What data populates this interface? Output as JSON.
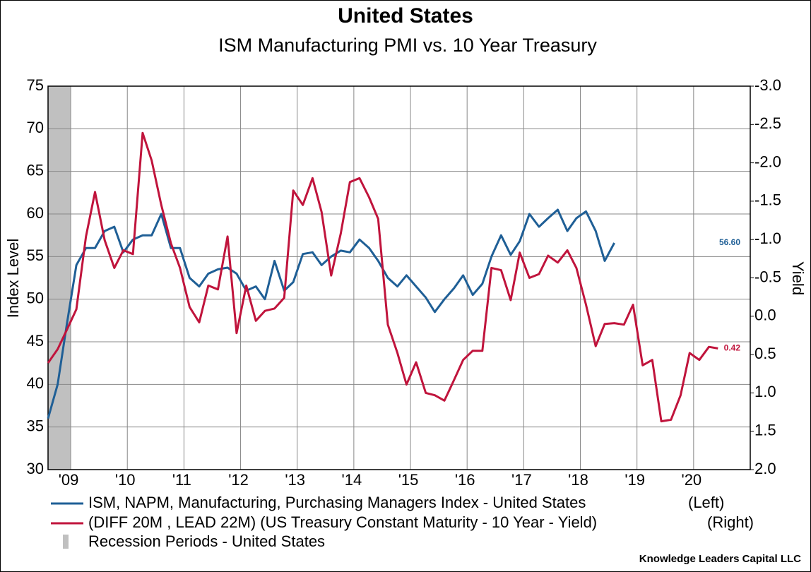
{
  "chart_data": {
    "type": "line",
    "title": "United States",
    "subtitle": "ISM Manufacturing PMI vs. 10 Year Treasury",
    "y_label": "Index Level",
    "y2_label": "Yield",
    "source": "Knowledge Leaders Capital LLC",
    "x": [
      2008.6,
      2008.77,
      2008.93,
      2009.1,
      2009.27,
      2009.43,
      2009.6,
      2009.77,
      2009.93,
      2010.1,
      2010.27,
      2010.43,
      2010.6,
      2010.77,
      2010.93,
      2011.1,
      2011.27,
      2011.43,
      2011.6,
      2011.77,
      2011.93,
      2012.1,
      2012.27,
      2012.43,
      2012.6,
      2012.77,
      2012.93,
      2013.1,
      2013.27,
      2013.43,
      2013.6,
      2013.77,
      2013.93,
      2014.1,
      2014.27,
      2014.43,
      2014.6,
      2014.77,
      2014.93,
      2015.1,
      2015.27,
      2015.43,
      2015.6,
      2015.77,
      2015.93,
      2016.1,
      2016.27,
      2016.43,
      2016.6,
      2016.77,
      2016.93,
      2017.1,
      2017.27,
      2017.43,
      2017.6,
      2017.77,
      2017.93,
      2018.1,
      2018.27,
      2018.43,
      2018.6,
      2018.77,
      2018.93,
      2019.1,
      2019.27,
      2019.43,
      2019.6,
      2019.77,
      2019.93,
      2020.1,
      2020.27,
      2020.43
    ],
    "xlim": [
      2008.6,
      2021.0
    ],
    "xticks": [
      {
        "value": 2009,
        "label": "'09"
      },
      {
        "value": 2010,
        "label": "'10"
      },
      {
        "value": 2011,
        "label": "'11"
      },
      {
        "value": 2012,
        "label": "'12"
      },
      {
        "value": 2013,
        "label": "'13"
      },
      {
        "value": 2014,
        "label": "'14"
      },
      {
        "value": 2015,
        "label": "'15"
      },
      {
        "value": 2016,
        "label": "'16"
      },
      {
        "value": 2017,
        "label": "'17"
      },
      {
        "value": 2018,
        "label": "'18"
      },
      {
        "value": 2019,
        "label": "'19"
      },
      {
        "value": 2020,
        "label": "'20"
      }
    ],
    "ylim": [
      30,
      75
    ],
    "yticks": [
      30,
      35,
      40,
      45,
      50,
      55,
      60,
      65,
      70,
      75
    ],
    "y2lim": [
      2,
      -3
    ],
    "y2ticks": [
      {
        "value": 2,
        "label": "2.0"
      },
      1.5,
      {
        "value": 1,
        "label": "1.0"
      },
      0.5,
      {
        "value": 0,
        "label": "0.0"
      },
      -0.5,
      {
        "value": -1,
        "label": "-1.0"
      },
      -1.5,
      {
        "value": -2,
        "label": "-2.0"
      },
      -2.5,
      {
        "value": -3,
        "label": "-3.0"
      }
    ],
    "grid": true,
    "recession": {
      "name": "Recession Periods - United States",
      "color": "#c0c0c0",
      "start": 2008.6,
      "end": 2009.0
    },
    "series": [
      {
        "name": "ISM, NAPM, Manufacturing, Purchasing Managers Index - United States",
        "side": "(Left)",
        "color": "#1f5f96",
        "axis": "y",
        "end_label": "56.60",
        "values": [
          36,
          40,
          47,
          54,
          56,
          56,
          58,
          58.5,
          55.5,
          57,
          57.5,
          57.5,
          60,
          56,
          56,
          52.5,
          51.5,
          53,
          53.5,
          53.7,
          53,
          51,
          51.5,
          50,
          54.5,
          51,
          52,
          55.3,
          55.5,
          54,
          55,
          55.7,
          55.5,
          57,
          56,
          54.5,
          52.5,
          51.5,
          52.8,
          51.5,
          50.2,
          48.5,
          50,
          51.3,
          52.8,
          50.5,
          51.8,
          55,
          57.5,
          55.2,
          56.8,
          60,
          58.5,
          59.5,
          60.5,
          58,
          59.5,
          60.3,
          58,
          54.5,
          56.6,
          null,
          null,
          null,
          null,
          null,
          null,
          null,
          null,
          null,
          null,
          null
        ]
      },
      {
        "name": "(DIFF 20M , LEAD 22M) (US Treasury Constant Maturity - 10 Year - Yield)",
        "side": "(Right)",
        "color": "#c0143c",
        "axis": "y2",
        "end_label": "0.42",
        "values": [
          0.61,
          0.43,
          0.18,
          -0.09,
          -1.04,
          -1.62,
          -0.99,
          -0.63,
          -0.86,
          -0.81,
          -2.39,
          -2.03,
          -1.45,
          -0.95,
          -0.63,
          -0.12,
          0.08,
          -0.4,
          -0.35,
          -1.04,
          0.22,
          -0.4,
          0.06,
          -0.07,
          -0.1,
          -0.24,
          -1.64,
          -1.45,
          -1.8,
          -1.36,
          -0.53,
          -1.08,
          -1.75,
          -1.8,
          -1.55,
          -1.27,
          0.11,
          0.48,
          0.89,
          0.6,
          1.0,
          1.03,
          1.1,
          0.83,
          0.57,
          0.45,
          0.45,
          -0.63,
          -0.6,
          -0.21,
          -0.83,
          -0.5,
          -0.55,
          -0.79,
          -0.7,
          -0.86,
          -0.63,
          -0.15,
          0.39,
          0.1,
          0.09,
          0.11,
          -0.15,
          0.64,
          0.57,
          1.37,
          1.35,
          1.03,
          0.48,
          0.57,
          0.4,
          0.42
        ]
      }
    ]
  }
}
